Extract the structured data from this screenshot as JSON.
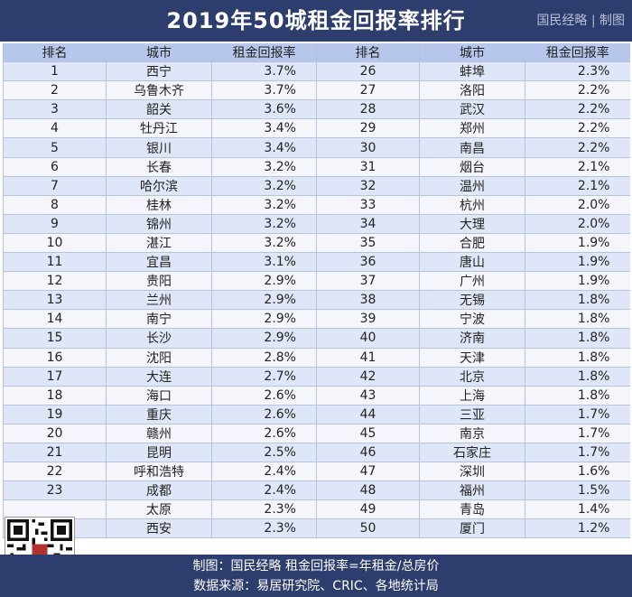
{
  "title": "2019年50城租金回报率排行",
  "brand": "国民经略 | 制图",
  "headers": [
    "排名",
    "城市",
    "租金回报率",
    "排名",
    "城市",
    "租金回报率"
  ],
  "left": [
    {
      "rank": "1",
      "city": "西宁",
      "rate": "3.7%"
    },
    {
      "rank": "2",
      "city": "乌鲁木齐",
      "rate": "3.7%"
    },
    {
      "rank": "3",
      "city": "韶关",
      "rate": "3.6%"
    },
    {
      "rank": "4",
      "city": "牡丹江",
      "rate": "3.4%"
    },
    {
      "rank": "5",
      "city": "银川",
      "rate": "3.4%"
    },
    {
      "rank": "6",
      "city": "长春",
      "rate": "3.2%"
    },
    {
      "rank": "7",
      "city": "哈尔滨",
      "rate": "3.2%"
    },
    {
      "rank": "8",
      "city": "桂林",
      "rate": "3.2%"
    },
    {
      "rank": "9",
      "city": "锦州",
      "rate": "3.2%"
    },
    {
      "rank": "10",
      "city": "湛江",
      "rate": "3.2%"
    },
    {
      "rank": "11",
      "city": "宜昌",
      "rate": "3.1%"
    },
    {
      "rank": "12",
      "city": "贵阳",
      "rate": "2.9%"
    },
    {
      "rank": "13",
      "city": "兰州",
      "rate": "2.9%"
    },
    {
      "rank": "14",
      "city": "南宁",
      "rate": "2.9%"
    },
    {
      "rank": "15",
      "city": "长沙",
      "rate": "2.9%"
    },
    {
      "rank": "16",
      "city": "沈阳",
      "rate": "2.8%"
    },
    {
      "rank": "17",
      "city": "大连",
      "rate": "2.7%"
    },
    {
      "rank": "18",
      "city": "海口",
      "rate": "2.6%"
    },
    {
      "rank": "19",
      "city": "重庆",
      "rate": "2.6%"
    },
    {
      "rank": "20",
      "city": "赣州",
      "rate": "2.6%"
    },
    {
      "rank": "21",
      "city": "昆明",
      "rate": "2.5%"
    },
    {
      "rank": "22",
      "city": "呼和浩特",
      "rate": "2.4%"
    },
    {
      "rank": "23",
      "city": "成都",
      "rate": "2.4%"
    },
    {
      "rank": "",
      "city": "太原",
      "rate": "2.3%"
    },
    {
      "rank": "",
      "city": "西安",
      "rate": "2.3%"
    }
  ],
  "right": [
    {
      "rank": "26",
      "city": "蚌埠",
      "rate": "2.3%"
    },
    {
      "rank": "27",
      "city": "洛阳",
      "rate": "2.2%"
    },
    {
      "rank": "28",
      "city": "武汉",
      "rate": "2.2%"
    },
    {
      "rank": "29",
      "city": "郑州",
      "rate": "2.2%"
    },
    {
      "rank": "30",
      "city": "南昌",
      "rate": "2.2%"
    },
    {
      "rank": "31",
      "city": "烟台",
      "rate": "2.1%"
    },
    {
      "rank": "32",
      "city": "温州",
      "rate": "2.1%"
    },
    {
      "rank": "33",
      "city": "杭州",
      "rate": "2.0%"
    },
    {
      "rank": "34",
      "city": "大理",
      "rate": "2.0%"
    },
    {
      "rank": "35",
      "city": "合肥",
      "rate": "1.9%"
    },
    {
      "rank": "36",
      "city": "唐山",
      "rate": "1.9%"
    },
    {
      "rank": "37",
      "city": "广州",
      "rate": "1.9%"
    },
    {
      "rank": "38",
      "city": "无锡",
      "rate": "1.8%"
    },
    {
      "rank": "39",
      "city": "宁波",
      "rate": "1.8%"
    },
    {
      "rank": "40",
      "city": "济南",
      "rate": "1.8%"
    },
    {
      "rank": "41",
      "city": "天津",
      "rate": "1.8%"
    },
    {
      "rank": "42",
      "city": "北京",
      "rate": "1.8%"
    },
    {
      "rank": "43",
      "city": "上海",
      "rate": "1.8%"
    },
    {
      "rank": "44",
      "city": "三亚",
      "rate": "1.7%"
    },
    {
      "rank": "45",
      "city": "南京",
      "rate": "1.7%"
    },
    {
      "rank": "46",
      "city": "石家庄",
      "rate": "1.7%"
    },
    {
      "rank": "47",
      "city": "深圳",
      "rate": "1.6%"
    },
    {
      "rank": "48",
      "city": "福州",
      "rate": "1.5%"
    },
    {
      "rank": "49",
      "city": "青岛",
      "rate": "1.4%"
    },
    {
      "rank": "50",
      "city": "厦门",
      "rate": "1.2%"
    }
  ],
  "footer": {
    "line1": "制图：国民经略  租金回报率=年租金/总房价",
    "line2": "数据来源：易居研究院、CRIC、各地统计局"
  },
  "colors": {
    "header_bar": "#2d3d6e",
    "col_header": "#b7c7ec",
    "row_odd": "#dfe6f7",
    "row_even": "#f4f6fc"
  }
}
